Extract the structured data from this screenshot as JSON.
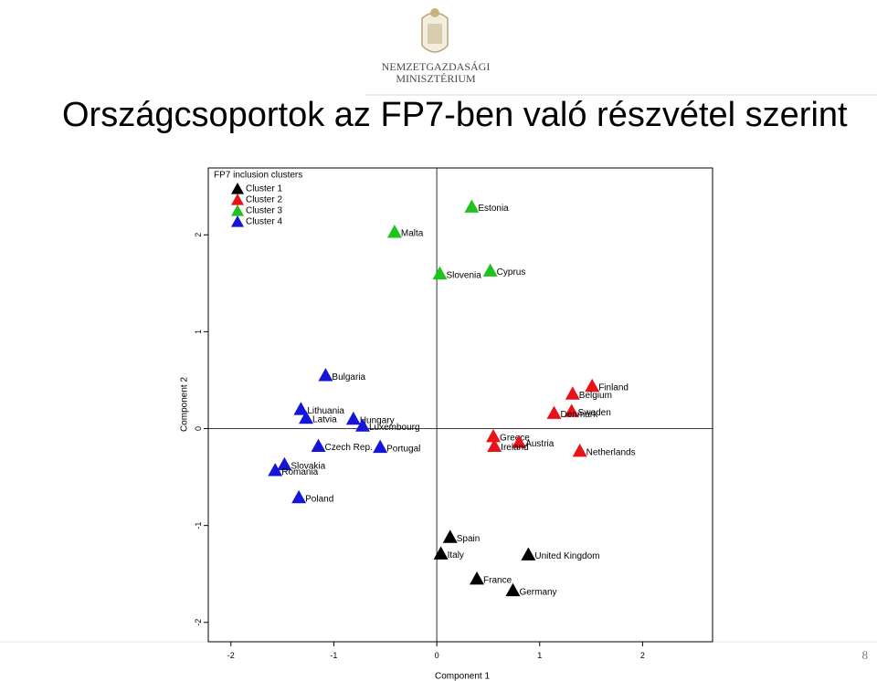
{
  "slide": {
    "ministry_line1": "NEMZETGAZDASÁGI",
    "ministry_line2": "MINISZTÉRIUM",
    "title": "Országcsoportok az FP7-ben való részvétel szerint",
    "page_number": 8
  },
  "chart_data": {
    "type": "scatter",
    "xlabel": "Component 1",
    "ylabel": "Component 2",
    "legend_title": "FP7 inclusion clusters",
    "legend": "upper left",
    "xlim": [
      -2.22,
      2.68
    ],
    "ylim": [
      -2.2,
      2.69
    ],
    "xticks": [
      -2,
      -1,
      0,
      1,
      2
    ],
    "yticks": [
      -2,
      -1,
      0,
      1,
      2
    ],
    "hlines": [
      0
    ],
    "vlines": [
      0
    ],
    "series": [
      {
        "name": "Cluster 1",
        "color": "#000000",
        "labels": [
          "Spain",
          "Italy",
          "United Kingdom",
          "France",
          "Germany"
        ],
        "x": [
          0.13,
          0.04,
          0.89,
          0.39,
          0.74
        ],
        "values": [
          -1.12,
          -1.29,
          -1.3,
          -1.55,
          -1.67
        ]
      },
      {
        "name": "Cluster 2",
        "color": "#e8121a",
        "labels": [
          "Finland",
          "Belgium",
          "Sweden",
          "Denmark",
          "Greece",
          "Austria",
          "Ireland",
          "Netherlands"
        ],
        "x": [
          1.51,
          1.32,
          1.31,
          1.14,
          0.55,
          0.8,
          0.56,
          1.39
        ],
        "values": [
          0.44,
          0.36,
          0.18,
          0.16,
          -0.08,
          -0.14,
          -0.18,
          -0.23
        ]
      },
      {
        "name": "Cluster 3",
        "color": "#1ec31e",
        "labels": [
          "Estonia",
          "Malta",
          "Slovenia",
          "Cyprus"
        ],
        "x": [
          0.34,
          -0.41,
          0.03,
          0.52
        ],
        "values": [
          2.29,
          2.03,
          1.6,
          1.63
        ]
      },
      {
        "name": "Cluster 4",
        "color": "#1515d8",
        "labels": [
          "Bulgaria",
          "Lithuania",
          "Latvia",
          "Hungary",
          "Luxembourg",
          "Czech Rep.",
          "Portugal",
          "Slovakia",
          "Romania",
          "Poland"
        ],
        "x": [
          -1.08,
          -1.32,
          -1.27,
          -0.81,
          -0.72,
          -1.15,
          -0.55,
          -1.48,
          -1.57,
          -1.34
        ],
        "values": [
          0.55,
          0.2,
          0.11,
          0.1,
          0.03,
          -0.18,
          -0.19,
          -0.37,
          -0.43,
          -0.71
        ]
      }
    ]
  }
}
